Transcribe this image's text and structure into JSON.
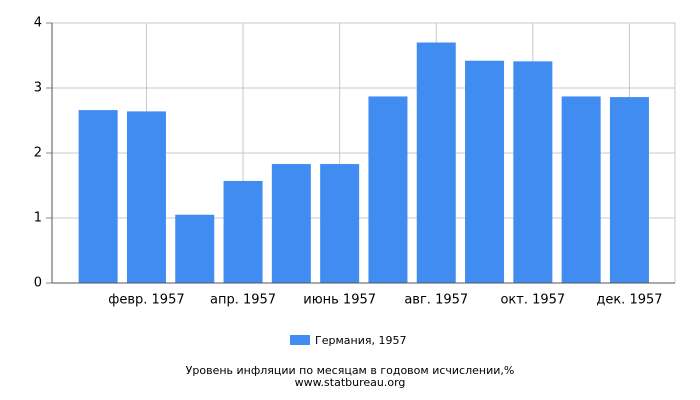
{
  "chart_data": {
    "type": "bar",
    "title": "Уровень инфляции по месяцам в годовом исчислении,%",
    "source": "www.statbureau.org",
    "categories": [
      null,
      "февр. 1957",
      null,
      "апр. 1957",
      null,
      "июнь 1957",
      null,
      "авг. 1957",
      null,
      "окт. 1957",
      null,
      "дек. 1957"
    ],
    "series": [
      {
        "name": "Германия, 1957",
        "color": "#418cf0",
        "values": [
          2.66,
          2.64,
          1.05,
          1.57,
          1.83,
          1.83,
          2.87,
          3.7,
          3.42,
          3.41,
          2.87,
          2.86
        ]
      }
    ],
    "ylim": [
      0,
      4
    ],
    "yticks": [
      0,
      1,
      2,
      3,
      4
    ],
    "grid": true,
    "legend": "bottom"
  }
}
